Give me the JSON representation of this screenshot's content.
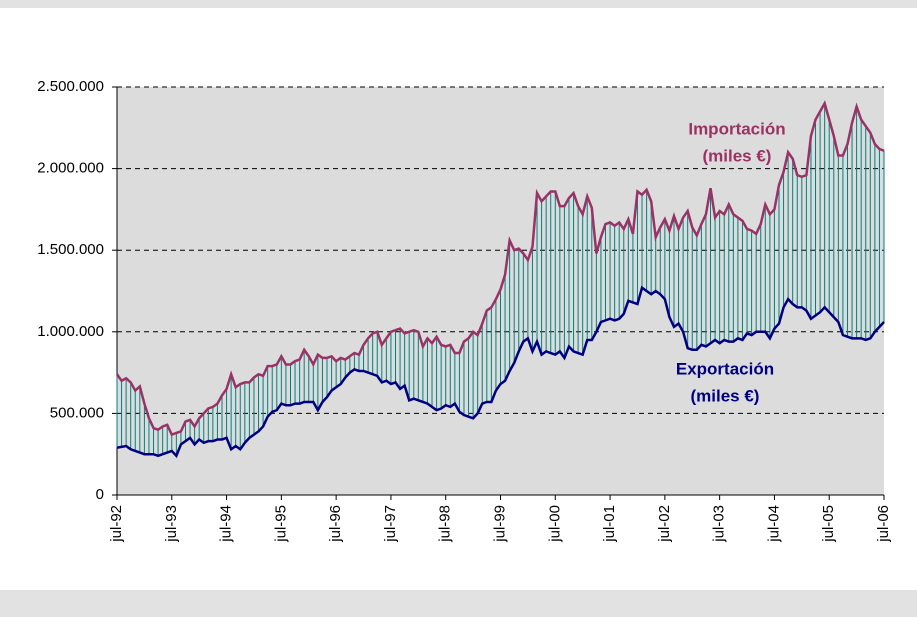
{
  "chart_data": {
    "type": "line",
    "annotations": [
      [
        "Importación",
        "(miles €)"
      ],
      [
        "Exportación",
        "(miles €)"
      ]
    ],
    "categories": [
      "jul-92",
      null,
      null,
      null,
      null,
      null,
      null,
      null,
      null,
      null,
      null,
      null,
      "jul-93",
      null,
      null,
      null,
      null,
      null,
      null,
      null,
      null,
      null,
      null,
      null,
      "jul-94",
      null,
      null,
      null,
      null,
      null,
      null,
      null,
      null,
      null,
      null,
      null,
      "jul-95",
      null,
      null,
      null,
      null,
      null,
      null,
      null,
      null,
      null,
      null,
      null,
      "jul-96",
      null,
      null,
      null,
      null,
      null,
      null,
      null,
      null,
      null,
      null,
      null,
      "jul-97",
      null,
      null,
      null,
      null,
      null,
      null,
      null,
      null,
      null,
      null,
      null,
      "jul-98",
      null,
      null,
      null,
      null,
      null,
      null,
      null,
      null,
      null,
      null,
      null,
      "jul-99",
      null,
      null,
      null,
      null,
      null,
      null,
      null,
      null,
      null,
      null,
      null,
      "jul-00",
      null,
      null,
      null,
      null,
      null,
      null,
      null,
      null,
      null,
      null,
      null,
      "jul-01",
      null,
      null,
      null,
      null,
      null,
      null,
      null,
      null,
      null,
      null,
      null,
      "jul-02",
      null,
      null,
      null,
      null,
      null,
      null,
      null,
      null,
      null,
      null,
      null,
      "jul-03",
      null,
      null,
      null,
      null,
      null,
      null,
      null,
      null,
      null,
      null,
      null,
      "jul-04",
      null,
      null,
      null,
      null,
      null,
      null,
      null,
      null,
      null,
      null,
      null,
      "jul-05",
      null,
      null,
      null,
      null,
      null,
      null,
      null,
      null,
      null,
      null,
      null,
      "jul-06"
    ],
    "series": [
      {
        "name": "Importación",
        "color": "#993366",
        "values": [
          740000,
          700000,
          715000,
          690000,
          640000,
          665000,
          560000,
          470000,
          410000,
          400000,
          420000,
          430000,
          370000,
          380000,
          390000,
          450000,
          460000,
          420000,
          470000,
          500000,
          530000,
          540000,
          560000,
          610000,
          650000,
          740000,
          660000,
          680000,
          690000,
          690000,
          720000,
          740000,
          730000,
          790000,
          790000,
          800000,
          850000,
          800000,
          800000,
          820000,
          830000,
          890000,
          850000,
          800000,
          860000,
          840000,
          840000,
          850000,
          820000,
          840000,
          830000,
          850000,
          870000,
          860000,
          920000,
          960000,
          990000,
          1000000,
          920000,
          960000,
          1000000,
          1010000,
          1020000,
          990000,
          1000000,
          1010000,
          1000000,
          910000,
          960000,
          930000,
          970000,
          920000,
          910000,
          920000,
          870000,
          870000,
          940000,
          960000,
          1000000,
          980000,
          1050000,
          1130000,
          1150000,
          1200000,
          1260000,
          1350000,
          1560000,
          1500000,
          1510000,
          1480000,
          1440000,
          1520000,
          1850000,
          1800000,
          1830000,
          1860000,
          1860000,
          1770000,
          1770000,
          1820000,
          1850000,
          1770000,
          1720000,
          1830000,
          1760000,
          1480000,
          1580000,
          1660000,
          1670000,
          1650000,
          1670000,
          1630000,
          1690000,
          1600000,
          1860000,
          1840000,
          1870000,
          1800000,
          1580000,
          1640000,
          1690000,
          1620000,
          1710000,
          1630000,
          1700000,
          1740000,
          1640000,
          1590000,
          1660000,
          1720000,
          1880000,
          1700000,
          1740000,
          1720000,
          1780000,
          1720000,
          1700000,
          1680000,
          1630000,
          1620000,
          1600000,
          1660000,
          1780000,
          1720000,
          1750000,
          1900000,
          1980000,
          2100000,
          2060000,
          1960000,
          1950000,
          1960000,
          2200000,
          2300000,
          2350000,
          2400000,
          2300000,
          2200000,
          2080000,
          2080000,
          2150000,
          2280000,
          2380000,
          2300000,
          2260000,
          2220000,
          2150000,
          2120000,
          2110000
        ]
      },
      {
        "name": "Exportación",
        "color": "#000080",
        "values": [
          290000,
          295000,
          300000,
          280000,
          270000,
          260000,
          250000,
          250000,
          250000,
          240000,
          250000,
          260000,
          270000,
          240000,
          310000,
          330000,
          350000,
          310000,
          340000,
          320000,
          330000,
          330000,
          340000,
          340000,
          350000,
          280000,
          300000,
          280000,
          320000,
          350000,
          370000,
          390000,
          420000,
          480000,
          510000,
          520000,
          560000,
          550000,
          550000,
          560000,
          560000,
          570000,
          570000,
          570000,
          520000,
          570000,
          600000,
          640000,
          660000,
          680000,
          720000,
          750000,
          770000,
          760000,
          760000,
          750000,
          740000,
          730000,
          690000,
          700000,
          680000,
          690000,
          650000,
          670000,
          580000,
          590000,
          580000,
          570000,
          560000,
          540000,
          520000,
          530000,
          550000,
          540000,
          560000,
          510000,
          490000,
          480000,
          470000,
          500000,
          560000,
          570000,
          570000,
          640000,
          680000,
          700000,
          760000,
          810000,
          880000,
          940000,
          960000,
          880000,
          940000,
          860000,
          880000,
          870000,
          860000,
          880000,
          840000,
          910000,
          880000,
          870000,
          860000,
          950000,
          950000,
          1000000,
          1060000,
          1070000,
          1080000,
          1070000,
          1080000,
          1110000,
          1190000,
          1180000,
          1170000,
          1270000,
          1250000,
          1230000,
          1250000,
          1230000,
          1200000,
          1090000,
          1030000,
          1050000,
          1000000,
          900000,
          890000,
          890000,
          920000,
          910000,
          930000,
          950000,
          930000,
          950000,
          940000,
          940000,
          960000,
          950000,
          990000,
          980000,
          1000000,
          1000000,
          1000000,
          960000,
          1020000,
          1050000,
          1150000,
          1200000,
          1170000,
          1150000,
          1150000,
          1130000,
          1080000,
          1100000,
          1120000,
          1150000,
          1120000,
          1090000,
          1060000,
          980000,
          970000,
          960000,
          960000,
          960000,
          950000,
          960000,
          1000000,
          1030000,
          1060000
        ]
      }
    ],
    "hatch_color": "#008080",
    "ylim": [
      0,
      2500000
    ],
    "yticks": [
      0,
      {
        "value": 500000,
        "label": "500.000"
      },
      {
        "value": 1000000,
        "label": "1.000.000"
      },
      {
        "value": 1500000,
        "label": "1.500.000"
      },
      {
        "value": 2000000,
        "label": "2.000.000"
      },
      {
        "value": 2500000,
        "label": "2.500.000"
      }
    ],
    "grid": true
  }
}
